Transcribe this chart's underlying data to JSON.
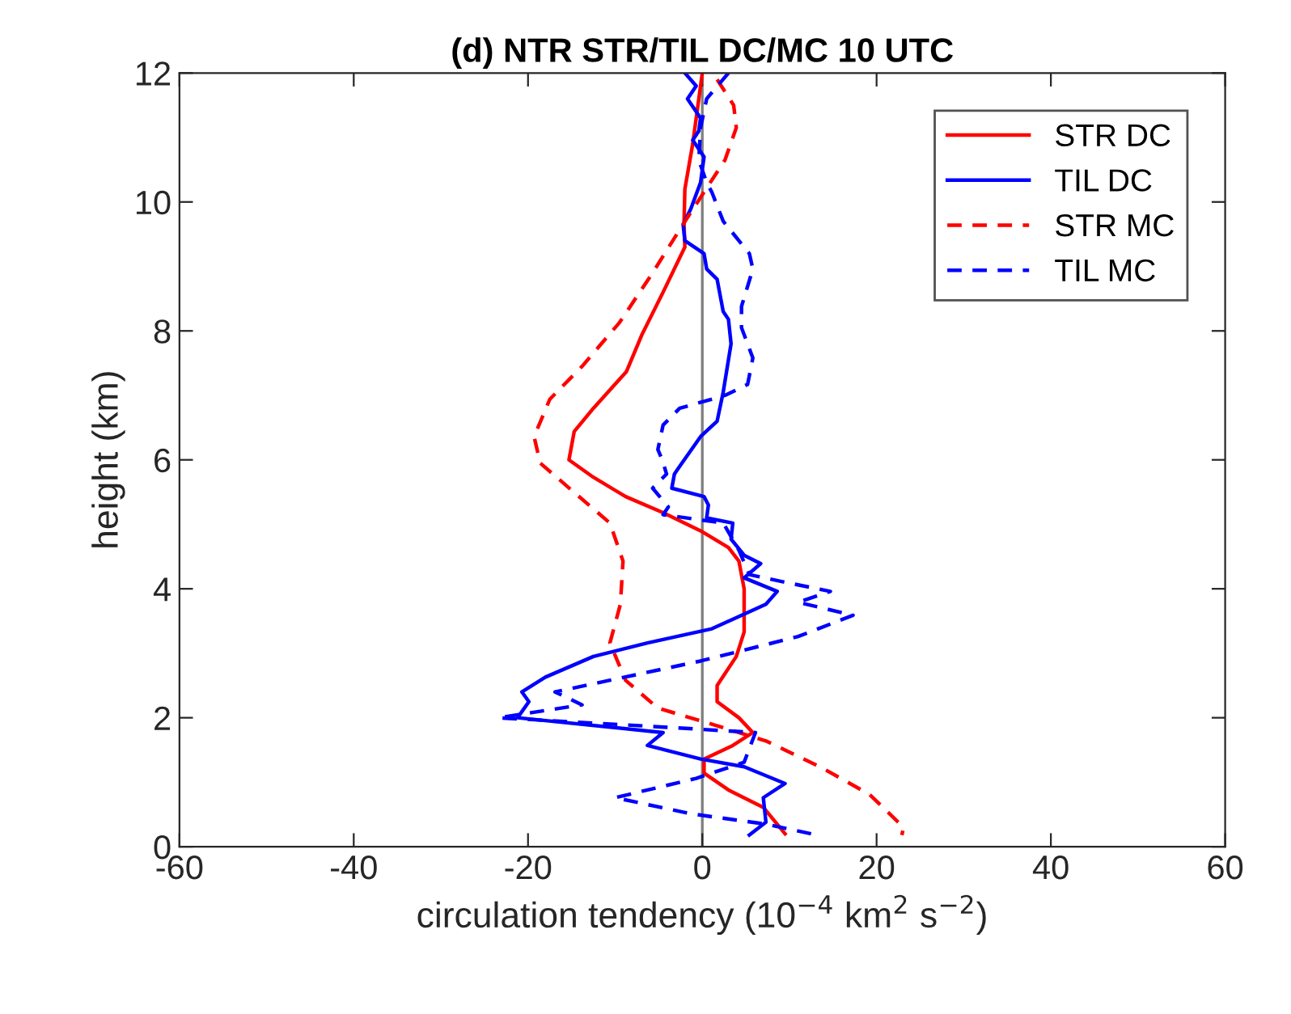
{
  "chart_data": {
    "type": "line",
    "title": "(d) NTR STR/TIL DC/MC 10 UTC",
    "xlabel": "circulation tendency (10$^{−4}$ km$^{2}$ s$^{−2}$)",
    "ylabel": "height (km)",
    "xlim": [
      -60,
      60
    ],
    "xticks": [
      -60,
      -40,
      -20,
      0,
      20,
      40,
      60
    ],
    "ylim": [
      0,
      12
    ],
    "yticks": [
      0,
      2,
      4,
      6,
      8,
      10,
      12
    ],
    "grid": false,
    "legend": "top right",
    "ref_lines": [
      {
        "axis": "x",
        "value": 0,
        "color": "#808080"
      }
    ],
    "series": [
      {
        "name": "STR DC",
        "color": "#ff0000",
        "line_style": "solid",
        "x": [
          0,
          -1.1,
          -2,
          -2.1,
          -2,
          -4.5,
          -6.9,
          -8.7,
          -12.5,
          -14.7,
          -15.3,
          -12.5,
          -8.8,
          -4.5,
          -0.2,
          3,
          4.2,
          4.8,
          4.8,
          3.9,
          1.7,
          1.7,
          4.2,
          5.8,
          3.5,
          0.2,
          0.2,
          3,
          7,
          9.5
        ],
        "values": [
          12,
          10.9,
          10.2,
          9.65,
          9.3,
          8.6,
          7.95,
          7.37,
          6.8,
          6.44,
          6.0,
          5.73,
          5.43,
          5.18,
          4.9,
          4.64,
          4.43,
          4.0,
          3.33,
          2.95,
          2.5,
          2.25,
          2.0,
          1.77,
          1.57,
          1.36,
          1.14,
          0.88,
          0.61,
          0.2
        ]
      },
      {
        "name": "TIL DC",
        "color": "#0000ff",
        "line_style": "solid",
        "x": [
          -2,
          -0.7,
          -1.7,
          -0.2,
          -0.4,
          -1.1,
          0.2,
          -0.2,
          -1.3,
          -2.2,
          -2,
          0.2,
          0.5,
          1.7,
          2.4,
          3,
          3.3,
          2.4,
          1.7,
          -0.2,
          -2.6,
          -3.2,
          -3.5,
          0.2,
          0.7,
          0.5,
          3.5,
          3.3,
          4.8,
          6.7,
          4.8,
          8.6,
          7.3,
          1.1,
          -6.3,
          -12.5,
          -18,
          -20.7,
          -19.9,
          -21.2,
          -4.5,
          -6.3,
          -0.2,
          4.8,
          9.5,
          7,
          7.3,
          5.4
        ],
        "values": [
          12,
          11.8,
          11.6,
          11.3,
          11.1,
          10.96,
          10.7,
          10.3,
          9.9,
          9.65,
          9.4,
          9.2,
          8.96,
          8.8,
          8.3,
          8.18,
          7.8,
          7.05,
          6.6,
          6.36,
          5.9,
          5.78,
          5.56,
          5.43,
          5.3,
          5.1,
          5.02,
          4.77,
          4.52,
          4.39,
          4.17,
          3.96,
          3.76,
          3.38,
          3.16,
          2.95,
          2.63,
          2.4,
          2.25,
          2.0,
          1.77,
          1.57,
          1.36,
          1.24,
          0.98,
          0.76,
          0.38,
          0.18
        ]
      },
      {
        "name": "STR MC",
        "color": "#ff0000",
        "line_style": "dashed",
        "x": [
          1.7,
          3.6,
          3.9,
          2.6,
          -0.2,
          -2.6,
          -5.7,
          -9.5,
          -13.8,
          -17.5,
          -19.3,
          -18.6,
          -15,
          -10.6,
          -9.1,
          -9.4,
          -10.6,
          -8.8,
          -5.1,
          1.1,
          7.3,
          13.5,
          19.2,
          23.1,
          22.9
        ],
        "values": [
          11.9,
          11.5,
          11.15,
          10.65,
          10.07,
          9.57,
          8.9,
          8.13,
          7.45,
          6.94,
          6.36,
          5.95,
          5.53,
          5.02,
          4.43,
          3.76,
          3.16,
          2.58,
          2.15,
          1.9,
          1.64,
          1.24,
          0.81,
          0.3,
          0.18
        ]
      },
      {
        "name": "TIL MC",
        "color": "#0000ff",
        "line_style": "dashed",
        "x": [
          3,
          0.5,
          -0.2,
          -0.4,
          0.5,
          1.1,
          2.4,
          5.4,
          5.8,
          4.5,
          4.5,
          5.8,
          5.2,
          2.6,
          -2.6,
          -4.5,
          -5.1,
          -4.6,
          -4.1,
          -5.7,
          -3.9,
          -4.5,
          2.4,
          4.2,
          5.4,
          9.9,
          14.7,
          11,
          17.3,
          11,
          -0.2,
          -16.9,
          -13.8,
          -23.4,
          -6.3,
          6.1,
          4.8,
          -0.7,
          -10,
          -1.3,
          7.3,
          13.2
        ],
        "values": [
          12,
          11.6,
          11.15,
          10.65,
          10.3,
          10.15,
          9.7,
          9.2,
          8.96,
          8.38,
          8.05,
          7.58,
          7.17,
          7.0,
          6.8,
          6.54,
          6.16,
          6.0,
          5.78,
          5.56,
          5.27,
          5.15,
          5.02,
          4.6,
          4.22,
          4.09,
          3.96,
          3.79,
          3.59,
          3.26,
          2.88,
          2.4,
          2.2,
          2.0,
          1.87,
          1.77,
          1.31,
          1.06,
          0.76,
          0.51,
          0.35,
          0.18
        ]
      }
    ]
  }
}
